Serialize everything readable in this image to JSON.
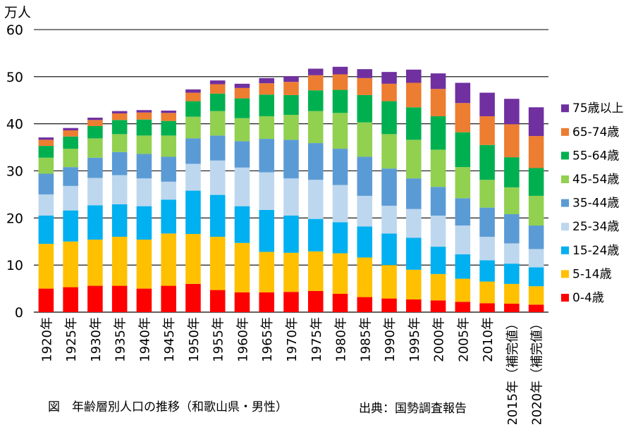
{
  "chart_data": {
    "type": "bar",
    "stacked": true,
    "y_unit_label": "万人",
    "ylim": [
      0,
      60
    ],
    "yticks": [
      0,
      10,
      20,
      30,
      40,
      50,
      60
    ],
    "grid": true,
    "legend_position": "right",
    "caption": "図　年齢層別人口の推移（和歌山県・男性）",
    "source": "出典：国勢調査報告",
    "categories": [
      "1920年",
      "1925年",
      "1930年",
      "1935年",
      "1940年",
      "1945年",
      "1950年",
      "1955年",
      "1960年",
      "1965年",
      "1970年",
      "1975年",
      "1980年",
      "1985年",
      "1990年",
      "1995年",
      "2000年",
      "2005年",
      "2010年",
      "2015年（補完値）",
      "2020年（補完値）"
    ],
    "series": [
      {
        "name": "0-4歳",
        "color": "#ff0000",
        "values": [
          5.0,
          5.3,
          5.6,
          5.6,
          5.0,
          5.6,
          6.0,
          4.7,
          4.2,
          4.2,
          4.3,
          4.5,
          3.9,
          3.2,
          2.9,
          2.7,
          2.5,
          2.2,
          1.9,
          1.8,
          1.6
        ]
      },
      {
        "name": "5-14歳",
        "color": "#ffc000",
        "values": [
          9.5,
          9.7,
          9.8,
          10.4,
          10.4,
          11.1,
          10.6,
          11.3,
          10.5,
          8.6,
          8.3,
          8.4,
          8.6,
          8.4,
          7.1,
          6.3,
          5.6,
          4.9,
          4.6,
          4.2,
          3.9
        ]
      },
      {
        "name": "15-24歳",
        "color": "#00b0f0",
        "values": [
          6.0,
          6.6,
          7.3,
          6.9,
          7.1,
          7.2,
          9.2,
          8.9,
          7.8,
          8.9,
          7.9,
          6.9,
          6.6,
          6.6,
          6.7,
          6.8,
          5.8,
          5.2,
          4.5,
          4.3,
          4.0
        ]
      },
      {
        "name": "25-34歳",
        "color": "#bdd7ee",
        "values": [
          4.5,
          5.2,
          5.8,
          6.2,
          5.9,
          3.8,
          5.7,
          7.3,
          8.2,
          8.0,
          7.9,
          8.3,
          7.9,
          6.5,
          5.9,
          6.1,
          6.6,
          6.1,
          5.0,
          4.3,
          3.9
        ]
      },
      {
        "name": "35-44歳",
        "color": "#5b9bd5",
        "values": [
          4.4,
          4.0,
          4.3,
          4.9,
          5.2,
          5.3,
          5.4,
          5.3,
          5.6,
          7.1,
          8.2,
          7.8,
          7.7,
          8.3,
          7.9,
          6.5,
          6.1,
          5.8,
          6.2,
          6.2,
          5.0
        ]
      },
      {
        "name": "45-54歳",
        "color": "#92d050",
        "values": [
          3.4,
          3.9,
          4.1,
          3.8,
          3.9,
          4.5,
          4.6,
          5.2,
          4.9,
          4.8,
          5.3,
          6.8,
          7.6,
          7.3,
          7.3,
          8.2,
          7.9,
          6.6,
          5.9,
          5.7,
          6.3
        ]
      },
      {
        "name": "55-64歳",
        "color": "#00b050",
        "values": [
          2.5,
          2.6,
          2.6,
          3.0,
          3.4,
          3.1,
          3.3,
          3.7,
          4.2,
          4.6,
          4.2,
          4.4,
          4.9,
          5.8,
          7.0,
          6.9,
          7.1,
          7.4,
          7.4,
          6.4,
          5.9
        ]
      },
      {
        "name": "65-74歳",
        "color": "#ed7d31",
        "values": [
          1.3,
          1.3,
          1.3,
          1.4,
          1.5,
          1.7,
          1.8,
          2.0,
          2.2,
          2.4,
          2.8,
          3.2,
          3.3,
          3.6,
          3.7,
          5.2,
          5.8,
          6.2,
          6.1,
          7.0,
          6.8
        ]
      },
      {
        "name": "75歳以上",
        "color": "#7030a0",
        "values": [
          0.5,
          0.5,
          0.5,
          0.5,
          0.5,
          0.5,
          0.7,
          0.8,
          0.9,
          1.1,
          1.2,
          1.4,
          1.6,
          1.9,
          2.5,
          2.8,
          3.3,
          4.3,
          5.0,
          5.4,
          6.1
        ]
      }
    ]
  }
}
